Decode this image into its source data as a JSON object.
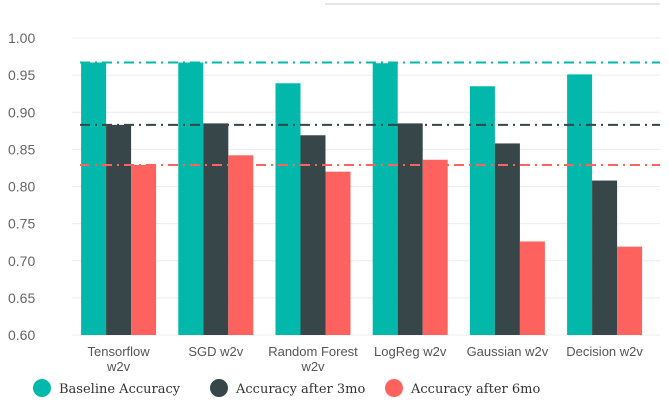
{
  "chart_data": {
    "type": "bar",
    "categories": [
      "Tensorflow w2v",
      "SGD w2v",
      "Random Forest w2v",
      "LogReg w2v",
      "Gaussian w2v",
      "Decision w2v"
    ],
    "series": [
      {
        "name": "Baseline Accuracy",
        "color": "#01b8aa",
        "values": [
          0.967,
          0.967,
          0.939,
          0.966,
          0.935,
          0.951
        ]
      },
      {
        "name": "Accuracy after 3mo",
        "color": "#374649",
        "values": [
          0.883,
          0.885,
          0.869,
          0.885,
          0.858,
          0.808
        ]
      },
      {
        "name": "Accuracy after 6mo",
        "color": "#fd625e",
        "values": [
          0.829,
          0.842,
          0.82,
          0.836,
          0.726,
          0.719
        ]
      }
    ],
    "reference_lines": [
      {
        "value": 0.967,
        "color": "#01b8aa",
        "style": "dash-dot"
      },
      {
        "value": 0.883,
        "color": "#374649",
        "style": "dash-dot"
      },
      {
        "value": 0.829,
        "color": "#fd625e",
        "style": "dash-dot"
      }
    ],
    "yticks": [
      "0.60",
      "0.65",
      "0.70",
      "0.75",
      "0.80",
      "0.85",
      "0.90",
      "0.95",
      "1.00"
    ],
    "ylim": [
      0.6,
      1.0
    ],
    "grid": true,
    "legend_position": "bottom",
    "title": "",
    "xlabel": "",
    "ylabel": ""
  }
}
